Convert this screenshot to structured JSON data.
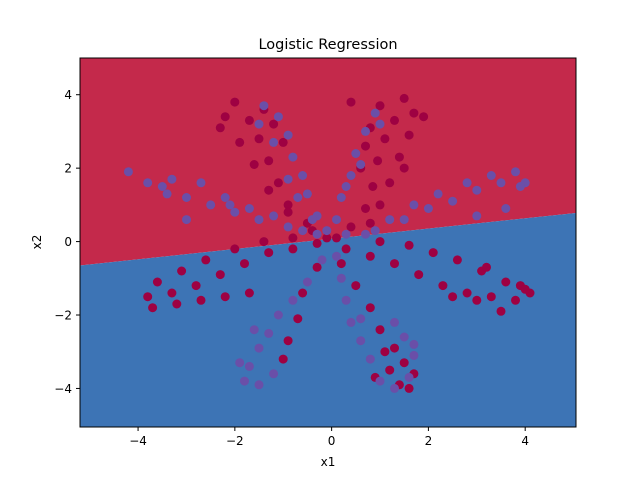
{
  "chart_data": {
    "type": "scatter",
    "title": "Logistic Regression",
    "xlabel": "x1",
    "ylabel": "x2",
    "xlim": [
      -5.2,
      5.05
    ],
    "ylim": [
      -5.05,
      5.0
    ],
    "xticks": [
      -4,
      -2,
      0,
      2,
      4
    ],
    "yticks": [
      -4,
      -2,
      0,
      2,
      4
    ],
    "xtick_labels": [
      "−4",
      "−2",
      "0",
      "2",
      "4"
    ],
    "ytick_labels": [
      "−4",
      "−2",
      "0",
      "2",
      "4"
    ],
    "grid": false,
    "legend": "none",
    "decision_boundary": {
      "x": [
        -5.2,
        5.05
      ],
      "y": [
        -0.65,
        0.78
      ],
      "above_color": "#c4294b",
      "below_color": "#3d74b5"
    },
    "series": [
      {
        "color": "#9e0142",
        "points": [
          [
            0.1,
            0.1
          ],
          [
            0.4,
            0.4
          ],
          [
            0.7,
            0.9
          ],
          [
            0.85,
            1.5
          ],
          [
            0.95,
            2.2
          ],
          [
            1.1,
            2.8
          ],
          [
            1.3,
            3.3
          ],
          [
            1.5,
            3.9
          ],
          [
            1.7,
            3.5
          ],
          [
            1.6,
            2.9
          ],
          [
            1.4,
            2.3
          ],
          [
            1.2,
            1.6
          ],
          [
            1.0,
            1.0
          ],
          [
            0.8,
            0.5
          ],
          [
            0.4,
            3.8
          ],
          [
            1.0,
            3.7
          ],
          [
            0.8,
            3.1
          ],
          [
            0.7,
            2.6
          ],
          [
            0.6,
            2.0
          ],
          [
            1.9,
            3.4
          ],
          [
            1.5,
            2.0
          ],
          [
            -0.1,
            0.1
          ],
          [
            -0.5,
            0.5
          ],
          [
            -0.9,
            1.0
          ],
          [
            -1.1,
            1.6
          ],
          [
            -1.3,
            2.2
          ],
          [
            -1.5,
            2.8
          ],
          [
            -1.7,
            3.3
          ],
          [
            -2.0,
            3.8
          ],
          [
            -2.2,
            3.4
          ],
          [
            -1.9,
            2.7
          ],
          [
            -1.6,
            2.1
          ],
          [
            -1.3,
            1.4
          ],
          [
            -0.9,
            0.8
          ],
          [
            -0.4,
            0.3
          ],
          [
            -1.4,
            3.6
          ],
          [
            -1.2,
            3.2
          ],
          [
            -2.3,
            3.1
          ],
          [
            -1.0,
            2.7
          ],
          [
            -0.3,
            -0.05
          ],
          [
            -0.8,
            -0.2
          ],
          [
            -1.3,
            -0.3
          ],
          [
            -1.8,
            -0.6
          ],
          [
            -2.3,
            -0.9
          ],
          [
            -2.8,
            -1.2
          ],
          [
            -3.3,
            -1.4
          ],
          [
            -3.8,
            -1.5
          ],
          [
            -3.6,
            -1.1
          ],
          [
            -3.1,
            -0.8
          ],
          [
            -2.6,
            -0.5
          ],
          [
            -2.0,
            -0.2
          ],
          [
            -1.4,
            0.0
          ],
          [
            -0.8,
            0.1
          ],
          [
            -3.2,
            -1.7
          ],
          [
            -2.7,
            -1.6
          ],
          [
            -2.2,
            -1.5
          ],
          [
            -1.7,
            -1.4
          ],
          [
            -3.7,
            -1.8
          ],
          [
            0.3,
            -0.2
          ],
          [
            0.8,
            -0.4
          ],
          [
            1.3,
            -0.6
          ],
          [
            1.8,
            -0.9
          ],
          [
            2.3,
            -1.2
          ],
          [
            2.8,
            -1.4
          ],
          [
            3.3,
            -1.5
          ],
          [
            3.8,
            -1.6
          ],
          [
            4.1,
            -1.4
          ],
          [
            3.6,
            -1.1
          ],
          [
            3.1,
            -0.8
          ],
          [
            2.6,
            -0.5
          ],
          [
            2.1,
            -0.3
          ],
          [
            1.6,
            -0.1
          ],
          [
            1.0,
            0.0
          ],
          [
            3.0,
            -1.6
          ],
          [
            3.5,
            -1.9
          ],
          [
            2.5,
            -1.5
          ],
          [
            3.9,
            -1.2
          ],
          [
            3.2,
            -0.7
          ],
          [
            4.0,
            -1.3
          ],
          [
            0.2,
            -0.6
          ],
          [
            0.5,
            -1.2
          ],
          [
            0.8,
            -1.8
          ],
          [
            1.0,
            -2.4
          ],
          [
            1.1,
            -3.0
          ],
          [
            1.2,
            -3.5
          ],
          [
            1.4,
            -3.9
          ],
          [
            1.6,
            -4.0
          ],
          [
            1.7,
            -3.6
          ],
          [
            0.9,
            -3.7
          ],
          [
            1.5,
            -3.3
          ],
          [
            1.3,
            -2.9
          ],
          [
            -0.3,
            -0.7
          ],
          [
            -0.6,
            -1.4
          ],
          [
            -0.7,
            -2.1
          ],
          [
            -0.9,
            -2.7
          ],
          [
            -1.0,
            -3.2
          ]
        ]
      },
      {
        "color": "#6a4fa8",
        "points": [
          [
            -0.1,
            0.3
          ],
          [
            -0.3,
            0.7
          ],
          [
            -0.5,
            1.3
          ],
          [
            -0.6,
            1.8
          ],
          [
            -0.8,
            2.3
          ],
          [
            -0.9,
            2.9
          ],
          [
            -1.1,
            3.4
          ],
          [
            -1.4,
            3.7
          ],
          [
            -1.5,
            3.2
          ],
          [
            -0.9,
            1.7
          ],
          [
            -0.7,
            1.2
          ],
          [
            -0.4,
            0.6
          ],
          [
            -1.2,
            2.7
          ],
          [
            0.1,
            0.6
          ],
          [
            0.2,
            1.2
          ],
          [
            0.4,
            1.8
          ],
          [
            0.5,
            2.4
          ],
          [
            0.7,
            3.0
          ],
          [
            0.9,
            3.5
          ],
          [
            1.0,
            3.2
          ],
          [
            0.6,
            2.1
          ],
          [
            0.3,
            1.5
          ],
          [
            -0.3,
            0.2
          ],
          [
            -0.9,
            0.4
          ],
          [
            -1.5,
            0.6
          ],
          [
            -2.0,
            0.8
          ],
          [
            -2.5,
            1.0
          ],
          [
            -3.0,
            1.2
          ],
          [
            -3.5,
            1.5
          ],
          [
            -4.2,
            1.9
          ],
          [
            -3.8,
            1.6
          ],
          [
            -3.3,
            1.7
          ],
          [
            -2.7,
            1.6
          ],
          [
            -2.2,
            1.2
          ],
          [
            -1.7,
            0.9
          ],
          [
            -1.2,
            0.7
          ],
          [
            -0.6,
            0.3
          ],
          [
            -3.0,
            0.6
          ],
          [
            -3.4,
            1.3
          ],
          [
            -2.1,
            1.0
          ],
          [
            0.3,
            0.2
          ],
          [
            0.9,
            0.3
          ],
          [
            1.5,
            0.6
          ],
          [
            2.0,
            0.9
          ],
          [
            2.5,
            1.1
          ],
          [
            3.0,
            1.4
          ],
          [
            3.5,
            1.6
          ],
          [
            4.0,
            1.6
          ],
          [
            3.8,
            1.9
          ],
          [
            3.3,
            1.8
          ],
          [
            2.8,
            1.6
          ],
          [
            2.2,
            1.3
          ],
          [
            1.7,
            1.0
          ],
          [
            1.2,
            0.6
          ],
          [
            0.7,
            0.2
          ],
          [
            3.0,
            0.7
          ],
          [
            3.6,
            0.9
          ],
          [
            3.9,
            1.5
          ],
          [
            -0.2,
            -0.5
          ],
          [
            -0.5,
            -1.1
          ],
          [
            -0.8,
            -1.6
          ],
          [
            -1.1,
            -2.0
          ],
          [
            -1.3,
            -2.5
          ],
          [
            -1.5,
            -2.9
          ],
          [
            -1.7,
            -3.4
          ],
          [
            -1.8,
            -3.8
          ],
          [
            -1.5,
            -3.9
          ],
          [
            -1.2,
            -3.6
          ],
          [
            -1.9,
            -3.3
          ],
          [
            -1.6,
            -2.4
          ],
          [
            0.1,
            -0.4
          ],
          [
            0.2,
            -1.0
          ],
          [
            0.3,
            -1.6
          ],
          [
            0.4,
            -2.2
          ],
          [
            0.6,
            -2.7
          ],
          [
            0.8,
            -3.2
          ],
          [
            1.0,
            -3.8
          ],
          [
            1.3,
            -4.0
          ],
          [
            1.6,
            -3.7
          ],
          [
            1.7,
            -3.1
          ],
          [
            1.5,
            -2.6
          ],
          [
            1.3,
            -2.2
          ],
          [
            1.7,
            -2.8
          ],
          [
            0.6,
            -2.1
          ]
        ]
      }
    ]
  }
}
